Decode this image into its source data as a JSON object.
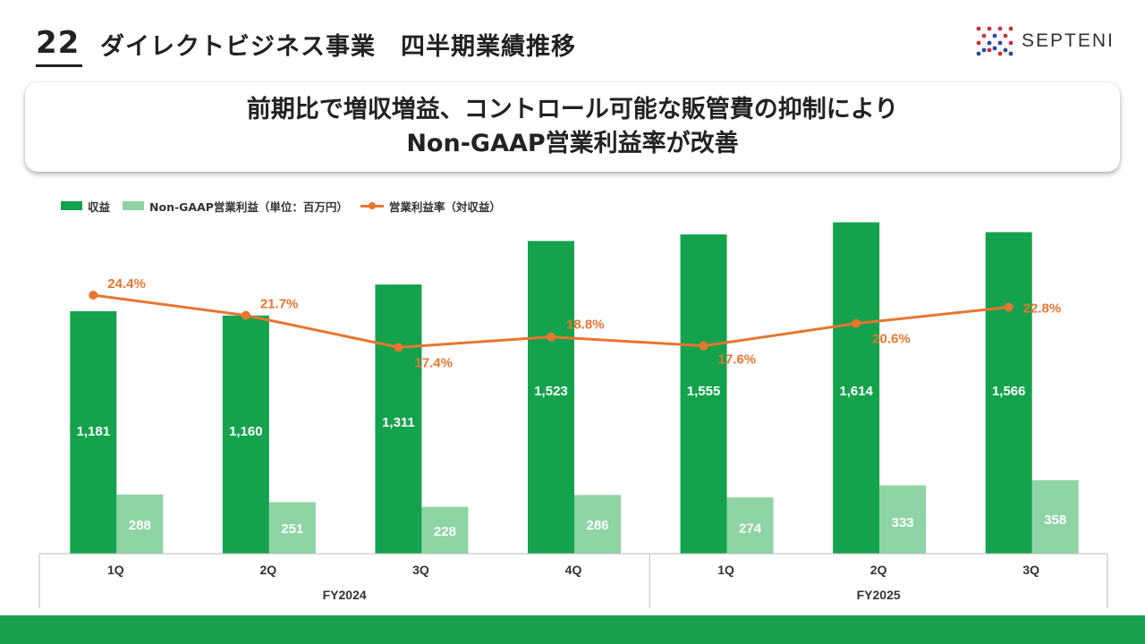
{
  "header": {
    "page_number": "22",
    "title": "ダイレクトビジネス事業　四半期業績推移",
    "logo_text": "SEPTENI"
  },
  "headline": {
    "line1": "前期比で増収増益、コントロール可能な販管費の抑制により",
    "line2": "Non-GAAP営業利益率が改善"
  },
  "colors": {
    "revenue": "#14a24d",
    "profit": "#8ed4a5",
    "margin": "#e87530",
    "bottom_bar": "#18a04a"
  },
  "chart_data": {
    "type": "bar",
    "legend": {
      "revenue": "収益",
      "profit": "Non-GAAP営業利益（単位：百万円）",
      "margin": "営業利益率（対収益）"
    },
    "categories": [
      "1Q",
      "2Q",
      "3Q",
      "4Q",
      "1Q",
      "2Q",
      "3Q"
    ],
    "groups": [
      {
        "label": "FY2024",
        "count": 4
      },
      {
        "label": "FY2025",
        "count": 3
      }
    ],
    "series": [
      {
        "name": "収益",
        "type": "bar",
        "values": [
          1181,
          1160,
          1311,
          1523,
          1555,
          1614,
          1566
        ],
        "labels": [
          "1,181",
          "1,160",
          "1,311",
          "1,523",
          "1,555",
          "1,614",
          "1,566"
        ]
      },
      {
        "name": "Non-GAAP営業利益",
        "type": "bar",
        "values": [
          288,
          251,
          228,
          286,
          274,
          333,
          358
        ],
        "labels": [
          "288",
          "251",
          "228",
          "286",
          "274",
          "333",
          "358"
        ]
      },
      {
        "name": "営業利益率",
        "type": "line",
        "values": [
          24.4,
          21.7,
          17.4,
          18.8,
          17.6,
          20.6,
          22.8
        ],
        "labels": [
          "24.4%",
          "21.7%",
          "17.4%",
          "18.8%",
          "17.6%",
          "20.6%",
          "22.8%"
        ]
      }
    ],
    "ylim": [
      0,
      1660
    ],
    "ylim_secondary": [
      10,
      28
    ],
    "margin_label_positions": [
      "right",
      "right",
      "below-right",
      "above-right",
      "right",
      "below-right",
      "right"
    ]
  }
}
